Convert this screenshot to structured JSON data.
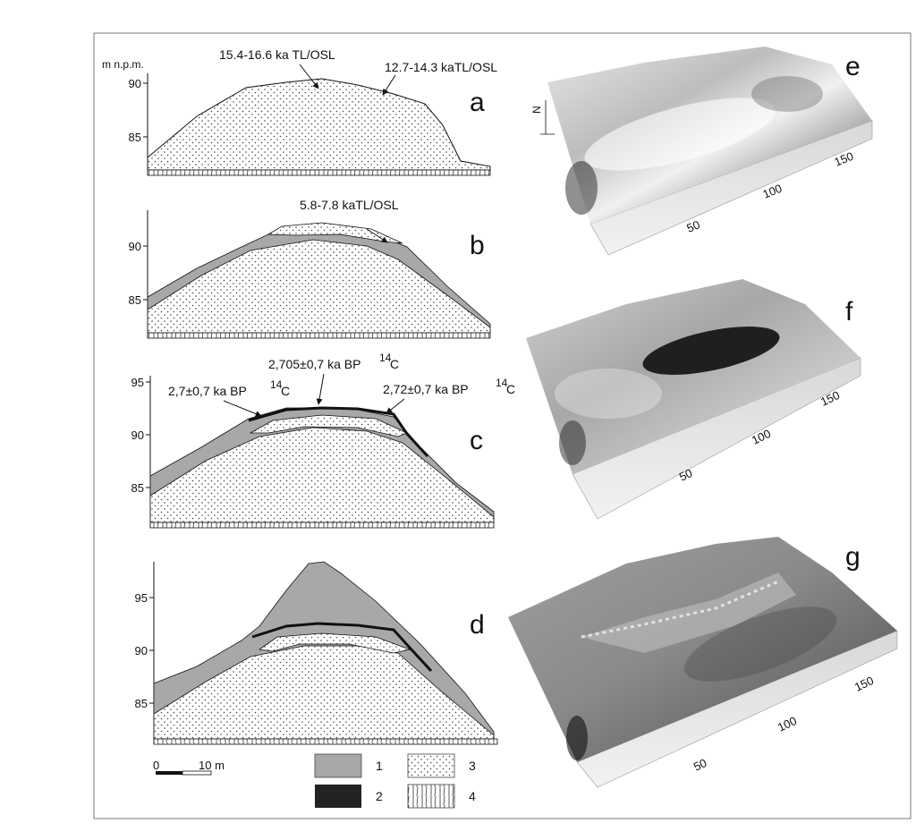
{
  "y_unit": "m n.p.m.",
  "profiles": {
    "a": {
      "letter": "a",
      "ticks": [
        "90",
        "85"
      ],
      "labels": [
        "15.4-16.6 ka TL/OSL",
        "12.7-14.3 kaTL/OSL"
      ]
    },
    "b": {
      "letter": "b",
      "ticks": [
        "90",
        "85"
      ],
      "labels": [
        "5.8-7.8 kaTL/OSL"
      ]
    },
    "c": {
      "letter": "c",
      "ticks": [
        "95",
        "90",
        "85"
      ],
      "labels": [
        "2,705±0,7 ka BP",
        "2,7±0,7 ka BP",
        "2,72±0,7 ka BP"
      ],
      "sup": "14",
      "sup_suffix": "C"
    },
    "d": {
      "letter": "d",
      "ticks": [
        "95",
        "90",
        "85"
      ]
    }
  },
  "models": {
    "e": {
      "letter": "e",
      "ticks": [
        "50",
        "100",
        "150"
      ],
      "north": "N"
    },
    "f": {
      "letter": "f",
      "ticks": [
        "50",
        "100",
        "150"
      ]
    },
    "g": {
      "letter": "g",
      "ticks": [
        "50",
        "100",
        "150"
      ]
    }
  },
  "scale": {
    "zero": "0",
    "label": "10 m"
  },
  "legend": [
    {
      "num": "1",
      "fill": "#a8a8a8"
    },
    {
      "num": "2",
      "fill": "#222222"
    },
    {
      "num": "3",
      "fill": "dots"
    },
    {
      "num": "4",
      "fill": "cracks"
    }
  ]
}
